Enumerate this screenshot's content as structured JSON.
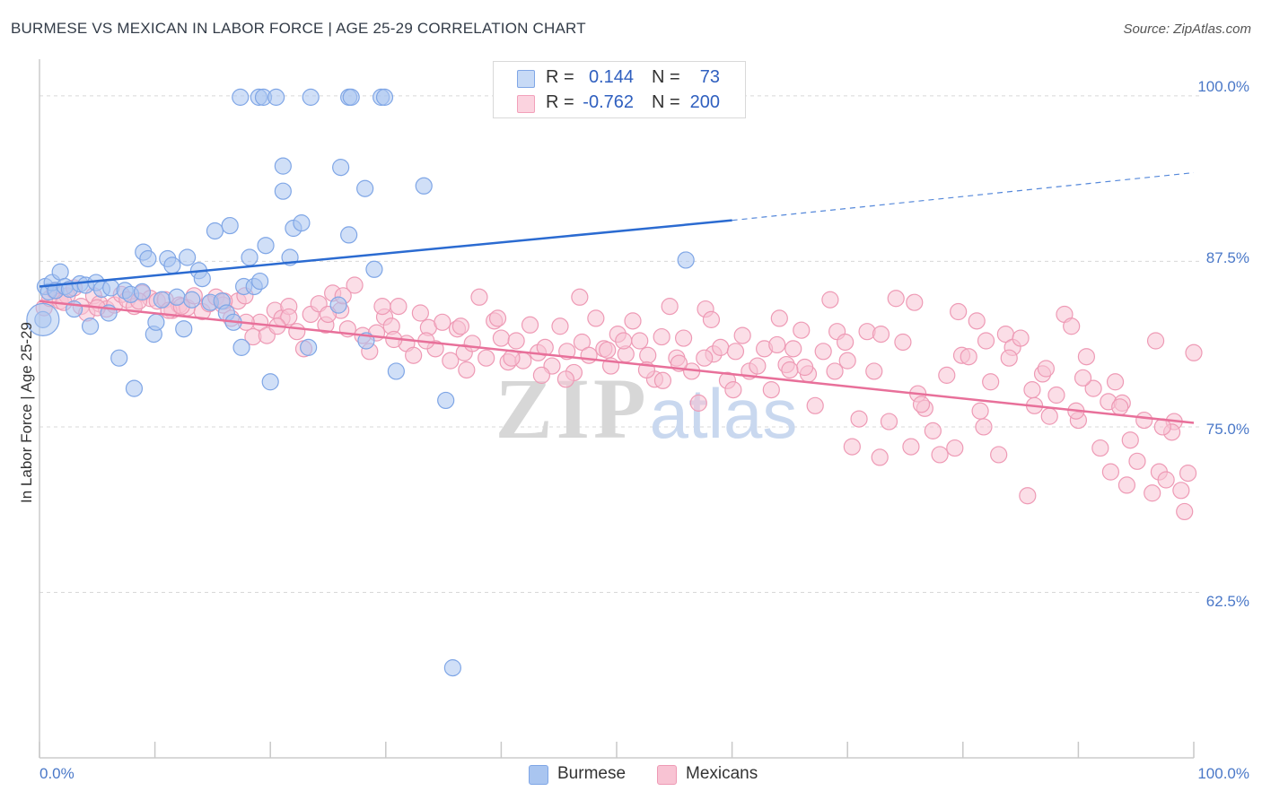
{
  "title": "BURMESE VS MEXICAN IN LABOR FORCE | AGE 25-29 CORRELATION CHART",
  "source": "Source: ZipAtlas.com",
  "watermark": "ZIPatlas",
  "legend_top": [
    {
      "r_label": "R =",
      "r_value": "0.144",
      "n_label": "N =",
      "n_value": "73",
      "color": "#7fa6e6"
    },
    {
      "r_label": "R =",
      "r_value": "-0.762",
      "n_label": "N =",
      "n_value": "200",
      "color": "#f2a0ba"
    }
  ],
  "legend_bottom": [
    {
      "label": "Burmese",
      "color": "#a9c5f0"
    },
    {
      "label": "Mexicans",
      "color": "#f8c3d3"
    }
  ],
  "colors": {
    "burmese_fill": "#a9c5f0",
    "burmese_stroke": "#7fa6e6",
    "burmese_line": "#2b6bd1",
    "mexican_fill": "#f8c3d3",
    "mexican_stroke": "#ee9ab5",
    "mexican_line": "#e8709a",
    "tick_label": "#4a78c8",
    "grid": "#d8d8d8"
  },
  "chart_data": {
    "type": "scatter",
    "title": "BURMESE VS MEXICAN IN LABOR FORCE | AGE 25-29 CORRELATION CHART",
    "xlabel": "",
    "ylabel": "In Labor Force | Age 25-29",
    "xlim": [
      0,
      100
    ],
    "ylim": [
      50,
      102.5
    ],
    "x_tick_labels": [
      {
        "value": 0,
        "label": "0.0%"
      },
      {
        "value": 100,
        "label": "100.0%"
      }
    ],
    "y_tick_labels": [
      {
        "value": 100,
        "label": "100.0%"
      },
      {
        "value": 87.5,
        "label": "87.5%"
      },
      {
        "value": 75,
        "label": "75.0%"
      },
      {
        "value": 62.5,
        "label": "62.5%"
      }
    ],
    "grid": "horizontal dashed",
    "legend_placement": "top-center",
    "series": [
      {
        "name": "Burmese",
        "r": 0.144,
        "n": 73,
        "trend": {
          "x0": 0,
          "y0": 85.6,
          "x1": 60,
          "y1": 90.6,
          "dashed_to_x": 100,
          "dashed_to_y": 94.2
        },
        "points": [
          [
            0.3,
            83.1
          ],
          [
            0.5,
            85.6
          ],
          [
            0.8,
            85.2
          ],
          [
            1.1,
            85.9
          ],
          [
            1.4,
            85.3
          ],
          [
            1.8,
            86.7
          ],
          [
            2.2,
            85.6
          ],
          [
            2.6,
            85.4
          ],
          [
            3.0,
            83.9
          ],
          [
            3.5,
            85.8
          ],
          [
            4.0,
            85.7
          ],
          [
            4.4,
            82.6
          ],
          [
            4.9,
            85.9
          ],
          [
            5.4,
            85.4
          ],
          [
            6.0,
            83.6
          ],
          [
            6.2,
            85.5
          ],
          [
            6.9,
            80.2
          ],
          [
            7.4,
            85.3
          ],
          [
            7.9,
            85.0
          ],
          [
            8.2,
            77.9
          ],
          [
            8.9,
            85.2
          ],
          [
            9.0,
            88.2
          ],
          [
            9.4,
            87.7
          ],
          [
            9.9,
            82.0
          ],
          [
            10.1,
            82.9
          ],
          [
            10.6,
            84.6
          ],
          [
            11.1,
            87.7
          ],
          [
            11.5,
            87.2
          ],
          [
            11.9,
            84.8
          ],
          [
            12.5,
            82.4
          ],
          [
            12.8,
            87.8
          ],
          [
            13.2,
            84.6
          ],
          [
            13.8,
            86.8
          ],
          [
            14.1,
            86.2
          ],
          [
            14.8,
            84.4
          ],
          [
            15.2,
            89.8
          ],
          [
            15.8,
            84.5
          ],
          [
            16.2,
            83.6
          ],
          [
            16.5,
            90.2
          ],
          [
            16.8,
            82.9
          ],
          [
            17.5,
            81.0
          ],
          [
            17.7,
            85.6
          ],
          [
            18.2,
            87.8
          ],
          [
            18.6,
            85.6
          ],
          [
            19.1,
            86.0
          ],
          [
            19.6,
            88.7
          ],
          [
            20.0,
            78.4
          ],
          [
            21.1,
            92.8
          ],
          [
            21.7,
            87.8
          ],
          [
            22.0,
            90.0
          ],
          [
            22.7,
            90.4
          ],
          [
            23.3,
            81.0
          ],
          [
            17.4,
            99.9
          ],
          [
            19.0,
            99.9
          ],
          [
            19.4,
            99.9
          ],
          [
            20.5,
            99.9
          ],
          [
            26.8,
            99.9
          ],
          [
            27.0,
            99.9
          ],
          [
            29.6,
            99.9
          ],
          [
            29.9,
            99.9
          ],
          [
            21.1,
            94.7
          ],
          [
            23.5,
            99.9
          ],
          [
            26.1,
            94.6
          ],
          [
            26.8,
            89.5
          ],
          [
            25.9,
            84.2
          ],
          [
            28.3,
            81.5
          ],
          [
            29.0,
            86.9
          ],
          [
            30.9,
            79.2
          ],
          [
            28.2,
            93.0
          ],
          [
            33.3,
            93.2
          ],
          [
            35.2,
            77.0
          ],
          [
            35.8,
            56.8
          ],
          [
            56.0,
            87.6
          ]
        ]
      },
      {
        "name": "Mexicans",
        "r": -0.762,
        "n": 200,
        "trend": {
          "x0": 0,
          "y0": 84.5,
          "x1": 100,
          "y1": 75.3
        },
        "points": [
          [
            0.4,
            84.0
          ],
          [
            0.9,
            84.7
          ],
          [
            1.3,
            85.3
          ],
          [
            1.8,
            84.5
          ],
          [
            2.4,
            84.9
          ],
          [
            3.0,
            85.5
          ],
          [
            3.6,
            84.1
          ],
          [
            4.1,
            83.6
          ],
          [
            4.7,
            84.9
          ],
          [
            5.2,
            84.3
          ],
          [
            5.8,
            83.9
          ],
          [
            6.5,
            84.2
          ],
          [
            7.1,
            85.0
          ],
          [
            7.6,
            84.6
          ],
          [
            8.2,
            84.1
          ],
          [
            8.9,
            85.1
          ],
          [
            9.6,
            84.7
          ],
          [
            10.2,
            84.5
          ],
          [
            10.9,
            84.6
          ],
          [
            11.5,
            83.8
          ],
          [
            12.1,
            84.2
          ],
          [
            12.8,
            84.0
          ],
          [
            13.4,
            84.9
          ],
          [
            14.1,
            83.7
          ],
          [
            14.7,
            84.3
          ],
          [
            15.3,
            84.8
          ],
          [
            15.9,
            84.2
          ],
          [
            16.6,
            83.2
          ],
          [
            17.2,
            84.5
          ],
          [
            17.8,
            84.9
          ],
          [
            18.5,
            81.8
          ],
          [
            19.1,
            82.9
          ],
          [
            19.7,
            81.9
          ],
          [
            20.4,
            83.8
          ],
          [
            21.0,
            83.2
          ],
          [
            21.6,
            84.1
          ],
          [
            22.3,
            82.2
          ],
          [
            22.9,
            80.9
          ],
          [
            23.5,
            83.5
          ],
          [
            24.2,
            84.3
          ],
          [
            24.8,
            82.7
          ],
          [
            25.4,
            85.1
          ],
          [
            26.1,
            83.8
          ],
          [
            26.7,
            82.4
          ],
          [
            27.3,
            85.7
          ],
          [
            28.0,
            81.9
          ],
          [
            28.6,
            80.7
          ],
          [
            29.2,
            82.1
          ],
          [
            29.9,
            83.3
          ],
          [
            30.5,
            82.6
          ],
          [
            31.1,
            84.1
          ],
          [
            31.8,
            81.3
          ],
          [
            32.4,
            80.4
          ],
          [
            33.0,
            83.6
          ],
          [
            33.7,
            82.5
          ],
          [
            34.3,
            80.9
          ],
          [
            34.9,
            82.9
          ],
          [
            35.6,
            80.0
          ],
          [
            36.2,
            82.4
          ],
          [
            36.8,
            80.6
          ],
          [
            37.5,
            81.3
          ],
          [
            38.1,
            84.8
          ],
          [
            38.7,
            80.2
          ],
          [
            39.4,
            83.0
          ],
          [
            40.0,
            81.7
          ],
          [
            40.6,
            79.9
          ],
          [
            41.3,
            81.5
          ],
          [
            41.9,
            80.0
          ],
          [
            42.5,
            82.7
          ],
          [
            43.2,
            80.6
          ],
          [
            43.8,
            81.0
          ],
          [
            44.4,
            79.6
          ],
          [
            45.1,
            82.6
          ],
          [
            45.7,
            80.7
          ],
          [
            46.3,
            79.1
          ],
          [
            47.0,
            81.4
          ],
          [
            47.6,
            80.4
          ],
          [
            48.2,
            83.2
          ],
          [
            48.9,
            80.9
          ],
          [
            49.5,
            79.6
          ],
          [
            50.1,
            82.0
          ],
          [
            50.8,
            80.5
          ],
          [
            51.4,
            83.0
          ],
          [
            52.0,
            81.5
          ],
          [
            52.7,
            80.4
          ],
          [
            53.3,
            78.6
          ],
          [
            53.9,
            81.8
          ],
          [
            54.6,
            84.1
          ],
          [
            55.2,
            80.2
          ],
          [
            55.8,
            81.7
          ],
          [
            56.5,
            79.2
          ],
          [
            57.1,
            76.8
          ],
          [
            57.7,
            83.9
          ],
          [
            58.4,
            80.5
          ],
          [
            59.0,
            81.0
          ],
          [
            59.6,
            78.5
          ],
          [
            60.3,
            80.7
          ],
          [
            60.9,
            81.9
          ],
          [
            61.5,
            79.2
          ],
          [
            62.2,
            79.6
          ],
          [
            62.8,
            80.9
          ],
          [
            63.4,
            77.8
          ],
          [
            64.1,
            83.2
          ],
          [
            64.7,
            79.7
          ],
          [
            65.3,
            80.9
          ],
          [
            66.0,
            82.3
          ],
          [
            66.6,
            79.0
          ],
          [
            67.2,
            76.6
          ],
          [
            67.9,
            80.7
          ],
          [
            68.5,
            84.6
          ],
          [
            69.1,
            82.2
          ],
          [
            69.8,
            81.4
          ],
          [
            70.4,
            73.5
          ],
          [
            71.0,
            75.6
          ],
          [
            71.7,
            82.2
          ],
          [
            72.3,
            79.2
          ],
          [
            72.9,
            82.0
          ],
          [
            73.6,
            75.4
          ],
          [
            74.2,
            84.7
          ],
          [
            74.8,
            81.4
          ],
          [
            75.5,
            73.5
          ],
          [
            76.1,
            77.5
          ],
          [
            76.7,
            76.4
          ],
          [
            77.4,
            74.7
          ],
          [
            78.0,
            72.9
          ],
          [
            78.6,
            78.9
          ],
          [
            79.3,
            73.4
          ],
          [
            79.9,
            80.4
          ],
          [
            80.5,
            80.3
          ],
          [
            81.2,
            83.0
          ],
          [
            81.8,
            75.0
          ],
          [
            82.4,
            78.4
          ],
          [
            83.1,
            72.9
          ],
          [
            83.7,
            82.0
          ],
          [
            84.3,
            81.0
          ],
          [
            85.0,
            81.7
          ],
          [
            85.6,
            69.8
          ],
          [
            86.2,
            76.6
          ],
          [
            86.9,
            79.0
          ],
          [
            87.5,
            75.8
          ],
          [
            88.1,
            77.4
          ],
          [
            88.8,
            83.5
          ],
          [
            89.4,
            82.6
          ],
          [
            90.0,
            75.5
          ],
          [
            90.7,
            80.3
          ],
          [
            91.3,
            77.9
          ],
          [
            91.9,
            73.4
          ],
          [
            92.6,
            76.9
          ],
          [
            93.2,
            78.4
          ],
          [
            93.8,
            76.8
          ],
          [
            94.5,
            74.0
          ],
          [
            95.1,
            72.4
          ],
          [
            95.7,
            75.5
          ],
          [
            96.4,
            70.0
          ],
          [
            97.0,
            71.6
          ],
          [
            97.6,
            71.0
          ],
          [
            98.3,
            75.4
          ],
          [
            98.9,
            70.2
          ],
          [
            99.5,
            71.5
          ],
          [
            100.0,
            80.6
          ],
          [
            11.2,
            83.8
          ],
          [
            17.9,
            82.9
          ],
          [
            21.6,
            83.3
          ],
          [
            26.3,
            84.9
          ],
          [
            30.7,
            81.6
          ],
          [
            37.0,
            79.3
          ],
          [
            40.9,
            80.2
          ],
          [
            45.6,
            78.6
          ],
          [
            49.2,
            80.8
          ],
          [
            52.6,
            79.3
          ],
          [
            55.4,
            79.8
          ],
          [
            58.2,
            83.1
          ],
          [
            63.9,
            81.2
          ],
          [
            66.3,
            79.5
          ],
          [
            70.0,
            80.0
          ],
          [
            75.8,
            84.4
          ],
          [
            79.6,
            83.7
          ],
          [
            82.0,
            81.5
          ],
          [
            84.0,
            80.2
          ],
          [
            87.2,
            79.4
          ],
          [
            90.4,
            78.7
          ],
          [
            93.6,
            76.5
          ],
          [
            96.7,
            81.5
          ],
          [
            98.1,
            74.6
          ],
          [
            99.2,
            68.6
          ],
          [
            97.3,
            75.0
          ],
          [
            94.2,
            70.6
          ],
          [
            92.8,
            71.6
          ],
          [
            89.8,
            76.2
          ],
          [
            86.0,
            77.8
          ],
          [
            81.5,
            76.2
          ],
          [
            76.4,
            76.7
          ],
          [
            72.8,
            72.7
          ],
          [
            68.9,
            79.2
          ],
          [
            65.0,
            79.3
          ],
          [
            60.1,
            77.8
          ],
          [
            57.6,
            80.2
          ],
          [
            54.0,
            78.5
          ],
          [
            50.6,
            81.5
          ],
          [
            46.8,
            84.8
          ],
          [
            43.5,
            78.9
          ],
          [
            39.7,
            83.2
          ],
          [
            36.5,
            82.6
          ],
          [
            33.5,
            81.5
          ],
          [
            29.7,
            84.1
          ],
          [
            25.0,
            83.5
          ],
          [
            20.6,
            82.6
          ],
          [
            16.0,
            84.5
          ],
          [
            12.3,
            84.1
          ],
          [
            8.6,
            84.5
          ],
          [
            5.0,
            84.0
          ],
          [
            2.1,
            84.4
          ]
        ]
      }
    ]
  }
}
